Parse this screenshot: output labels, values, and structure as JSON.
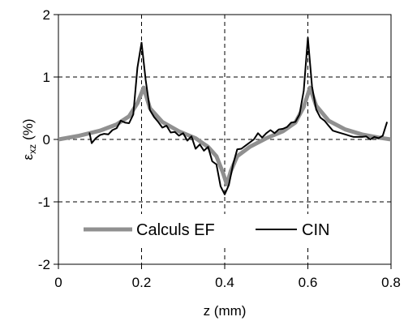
{
  "chart_data": {
    "type": "line",
    "title": "",
    "xlabel": "z (mm)",
    "ylabel": "εxz (%)",
    "ylabel_main": "ε",
    "ylabel_sub": "xz",
    "ylabel_unit": "(%)",
    "xlim": [
      0,
      0.8
    ],
    "ylim": [
      -2,
      2
    ],
    "x_ticks": [
      0,
      0.2,
      0.4,
      0.6,
      0.8
    ],
    "x_tick_labels": [
      "0",
      "0.2",
      "0.4",
      "0.6",
      "0.8"
    ],
    "y_ticks": [
      -2,
      -1,
      0,
      1,
      2
    ],
    "y_tick_labels": [
      "-2",
      "-1",
      "0",
      "1",
      "2"
    ],
    "grid": "dashed at x=0.2, 0.4, 0.6 and y=-1, 0, 1",
    "legend_position": "bottom-center",
    "series": [
      {
        "name": "Calculs EF",
        "color": "#909090",
        "x": [
          0,
          0.05,
          0.1,
          0.14,
          0.17,
          0.19,
          0.205,
          0.22,
          0.25,
          0.29,
          0.33,
          0.36,
          0.38,
          0.395,
          0.405,
          0.415,
          0.43,
          0.46,
          0.5,
          0.54,
          0.57,
          0.59,
          0.605,
          0.62,
          0.65,
          0.69,
          0.73,
          0.77,
          0.8
        ],
        "y": [
          0.0,
          0.06,
          0.14,
          0.24,
          0.37,
          0.58,
          0.83,
          0.5,
          0.28,
          0.13,
          0.02,
          -0.12,
          -0.27,
          -0.52,
          -0.72,
          -0.5,
          -0.27,
          -0.12,
          0.02,
          0.13,
          0.27,
          0.52,
          0.83,
          0.54,
          0.3,
          0.16,
          0.08,
          0.03,
          0.0
        ]
      },
      {
        "name": "CIN",
        "color": "#000000",
        "x": [
          0.075,
          0.08,
          0.09,
          0.1,
          0.11,
          0.12,
          0.13,
          0.14,
          0.15,
          0.16,
          0.17,
          0.18,
          0.19,
          0.2,
          0.21,
          0.22,
          0.23,
          0.24,
          0.25,
          0.26,
          0.27,
          0.28,
          0.29,
          0.3,
          0.31,
          0.32,
          0.33,
          0.34,
          0.35,
          0.36,
          0.37,
          0.38,
          0.39,
          0.4,
          0.41,
          0.42,
          0.43,
          0.44,
          0.45,
          0.46,
          0.47,
          0.48,
          0.49,
          0.5,
          0.51,
          0.52,
          0.53,
          0.54,
          0.55,
          0.56,
          0.57,
          0.58,
          0.59,
          0.6,
          0.61,
          0.62,
          0.63,
          0.64,
          0.65,
          0.66,
          0.67,
          0.68,
          0.69,
          0.7,
          0.71,
          0.72,
          0.73,
          0.74,
          0.75,
          0.76,
          0.77,
          0.78,
          0.79
        ],
        "y": [
          0.1,
          -0.06,
          0.02,
          0.07,
          0.09,
          0.08,
          0.15,
          0.18,
          0.3,
          0.27,
          0.26,
          0.4,
          1.15,
          1.55,
          0.95,
          0.47,
          0.36,
          0.28,
          0.19,
          0.22,
          0.11,
          0.12,
          0.06,
          0.1,
          -0.02,
          0.05,
          -0.15,
          -0.08,
          -0.18,
          -0.12,
          -0.35,
          -0.4,
          -0.75,
          -0.88,
          -0.73,
          -0.4,
          -0.16,
          -0.15,
          -0.1,
          -0.05,
          0.0,
          0.1,
          0.03,
          0.1,
          0.15,
          0.1,
          0.16,
          0.17,
          0.2,
          0.27,
          0.28,
          0.4,
          0.78,
          1.63,
          0.85,
          0.48,
          0.35,
          0.3,
          0.22,
          0.14,
          0.12,
          0.1,
          0.08,
          0.06,
          0.04,
          0.04,
          0.04,
          0.05,
          0.0,
          0.04,
          0.02,
          0.06,
          0.27
        ]
      }
    ]
  }
}
